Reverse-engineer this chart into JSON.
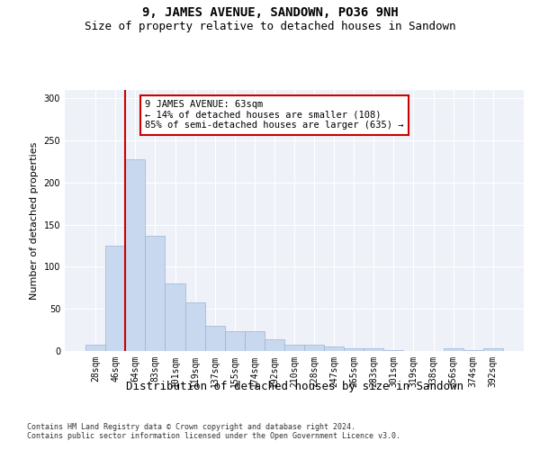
{
  "title": "9, JAMES AVENUE, SANDOWN, PO36 9NH",
  "subtitle": "Size of property relative to detached houses in Sandown",
  "xlabel": "Distribution of detached houses by size in Sandown",
  "ylabel": "Number of detached properties",
  "categories": [
    "28sqm",
    "46sqm",
    "64sqm",
    "83sqm",
    "101sqm",
    "119sqm",
    "137sqm",
    "155sqm",
    "174sqm",
    "192sqm",
    "210sqm",
    "228sqm",
    "247sqm",
    "265sqm",
    "283sqm",
    "301sqm",
    "319sqm",
    "338sqm",
    "356sqm",
    "374sqm",
    "392sqm"
  ],
  "values": [
    7,
    125,
    228,
    137,
    80,
    58,
    30,
    23,
    23,
    14,
    8,
    8,
    5,
    3,
    3,
    1,
    0,
    0,
    3,
    1,
    3
  ],
  "bar_color": "#c8d8ee",
  "bar_edge_color": "#9ab4d4",
  "vline_x_idx": 2,
  "vline_color": "#cc0000",
  "annotation_text": "9 JAMES AVENUE: 63sqm\n← 14% of detached houses are smaller (108)\n85% of semi-detached houses are larger (635) →",
  "annotation_box_color": "#ffffff",
  "annotation_box_edge_color": "#cc0000",
  "ylim": [
    0,
    310
  ],
  "yticks": [
    0,
    50,
    100,
    150,
    200,
    250,
    300
  ],
  "background_color": "#eef2f8",
  "grid_color": "#ffffff",
  "footer_line1": "Contains HM Land Registry data © Crown copyright and database right 2024.",
  "footer_line2": "Contains public sector information licensed under the Open Government Licence v3.0.",
  "title_fontsize": 10,
  "subtitle_fontsize": 9,
  "tick_fontsize": 7,
  "ylabel_fontsize": 8,
  "xlabel_fontsize": 9,
  "annotation_fontsize": 7.5,
  "footer_fontsize": 6
}
